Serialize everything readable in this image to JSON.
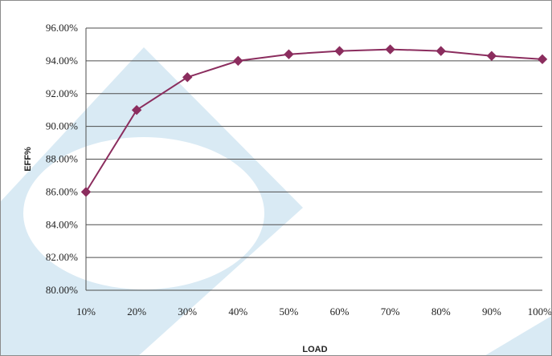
{
  "chart_data": {
    "type": "line",
    "title": "",
    "xlabel": "LOAD",
    "ylabel": "EFF%",
    "categories": [
      "10%",
      "20%",
      "30%",
      "40%",
      "50%",
      "60%",
      "70%",
      "80%",
      "90%",
      "100%"
    ],
    "series": [
      {
        "values": [
          86.0,
          91.0,
          93.0,
          94.0,
          94.4,
          94.6,
          94.7,
          94.6,
          94.3,
          94.1
        ]
      }
    ],
    "ylim": [
      80,
      96
    ],
    "y_ticks": [
      80,
      82,
      84,
      86,
      88,
      90,
      92,
      94,
      96
    ],
    "y_tick_labels": [
      "80.00%",
      "82.00%",
      "84.00%",
      "86.00%",
      "88.00%",
      "90.00%",
      "92.00%",
      "94.00%",
      "96.00%"
    ],
    "grid": true,
    "legend": "none",
    "colors": {
      "series": "#8b2d5e",
      "grid": "#4d4d4d",
      "watermark": "#d9eaf4"
    }
  }
}
